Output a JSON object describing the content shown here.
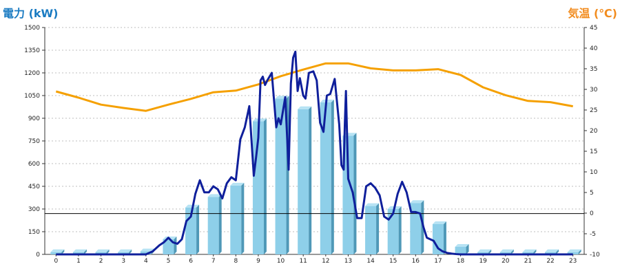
{
  "chart_data": {
    "type": "bar+line",
    "y_left": {
      "label": "電力 (kW)",
      "min": 0,
      "max": 1500,
      "ticks": [
        0,
        150,
        300,
        450,
        600,
        750,
        900,
        1050,
        1200,
        1350,
        1500
      ],
      "color": "#1a7bc2"
    },
    "y_right": {
      "label": "気温 (℃)",
      "min": -10,
      "max": 45,
      "ticks": [
        -10,
        -5,
        0,
        5,
        10,
        15,
        20,
        25,
        30,
        35,
        40,
        45
      ],
      "color": "#f28c1e"
    },
    "x": {
      "categories": [
        "0",
        "1",
        "2",
        "3",
        "4",
        "5",
        "6",
        "7",
        "8",
        "9",
        "10",
        "11",
        "12",
        "13",
        "14",
        "15",
        "16",
        "17",
        "18",
        "19",
        "20",
        "21",
        "22",
        "23"
      ]
    },
    "reference_line_kw": 270,
    "grid": true,
    "bars": {
      "axis": "left",
      "color": "#8ecfe9",
      "side_color": "#4f98b7",
      "top_color": "#b7e3f4",
      "values": [
        15,
        15,
        15,
        15,
        20,
        100,
        310,
        380,
        455,
        880,
        1030,
        960,
        1005,
        785,
        320,
        300,
        340,
        200,
        50,
        15,
        15,
        15,
        15,
        15
      ]
    },
    "temperature": {
      "axis": "right",
      "color": "#f5a000",
      "x": [
        0,
        1,
        2,
        3,
        4,
        5,
        6,
        7,
        8,
        9,
        10,
        11,
        12,
        13,
        14,
        15,
        16,
        17,
        18,
        19,
        20,
        21,
        22,
        23
      ],
      "values": [
        29.5,
        28,
        26.3,
        25.5,
        24.8,
        26.3,
        27.7,
        29.3,
        29.7,
        31.2,
        33.2,
        34.8,
        36.3,
        36.3,
        35.1,
        34.6,
        34.6,
        34.9,
        33.5,
        30.5,
        28.6,
        27.2,
        26.9,
        25.9
      ]
    },
    "power": {
      "axis": "left",
      "color": "#0f1f9b",
      "x": [
        0,
        1,
        2,
        3,
        4,
        4.3,
        4.6,
        4.8,
        5.0,
        5.2,
        5.4,
        5.6,
        5.8,
        6.0,
        6.2,
        6.4,
        6.6,
        6.8,
        7.0,
        7.2,
        7.4,
        7.6,
        7.8,
        8.0,
        8.2,
        8.4,
        8.6,
        8.8,
        8.9,
        9.0,
        9.1,
        9.2,
        9.3,
        9.4,
        9.6,
        9.8,
        9.9,
        10.0,
        10.2,
        10.35,
        10.45,
        10.55,
        10.65,
        10.75,
        10.85,
        11.0,
        11.1,
        11.25,
        11.45,
        11.6,
        11.75,
        11.9,
        12.05,
        12.2,
        12.4,
        12.6,
        12.7,
        12.8,
        12.85,
        12.9,
        13.0,
        13.2,
        13.4,
        13.6,
        13.8,
        14.0,
        14.2,
        14.4,
        14.6,
        14.8,
        15.0,
        15.2,
        15.4,
        15.6,
        15.8,
        16.0,
        16.2,
        16.35,
        16.5,
        16.65,
        16.8,
        17.0,
        17.2,
        17.4,
        17.6,
        17.8,
        18.0,
        18.5,
        19,
        20,
        21,
        22,
        23
      ],
      "values": [
        0,
        0,
        0,
        0,
        0,
        20,
        60,
        80,
        110,
        80,
        70,
        100,
        220,
        250,
        400,
        490,
        410,
        410,
        450,
        430,
        370,
        470,
        510,
        490,
        760,
        840,
        980,
        520,
        640,
        770,
        1150,
        1175,
        1120,
        1150,
        1200,
        840,
        900,
        860,
        1040,
        560,
        1130,
        1300,
        1340,
        1080,
        1165,
        1050,
        1030,
        1200,
        1210,
        1150,
        870,
        810,
        1050,
        1060,
        1160,
        860,
        590,
        560,
        860,
        1080,
        500,
        410,
        240,
        240,
        450,
        470,
        440,
        390,
        250,
        230,
        270,
        400,
        480,
        410,
        280,
        280,
        270,
        180,
        110,
        100,
        90,
        40,
        20,
        10,
        5,
        2,
        0,
        0,
        0,
        0,
        0,
        0,
        0
      ]
    }
  }
}
